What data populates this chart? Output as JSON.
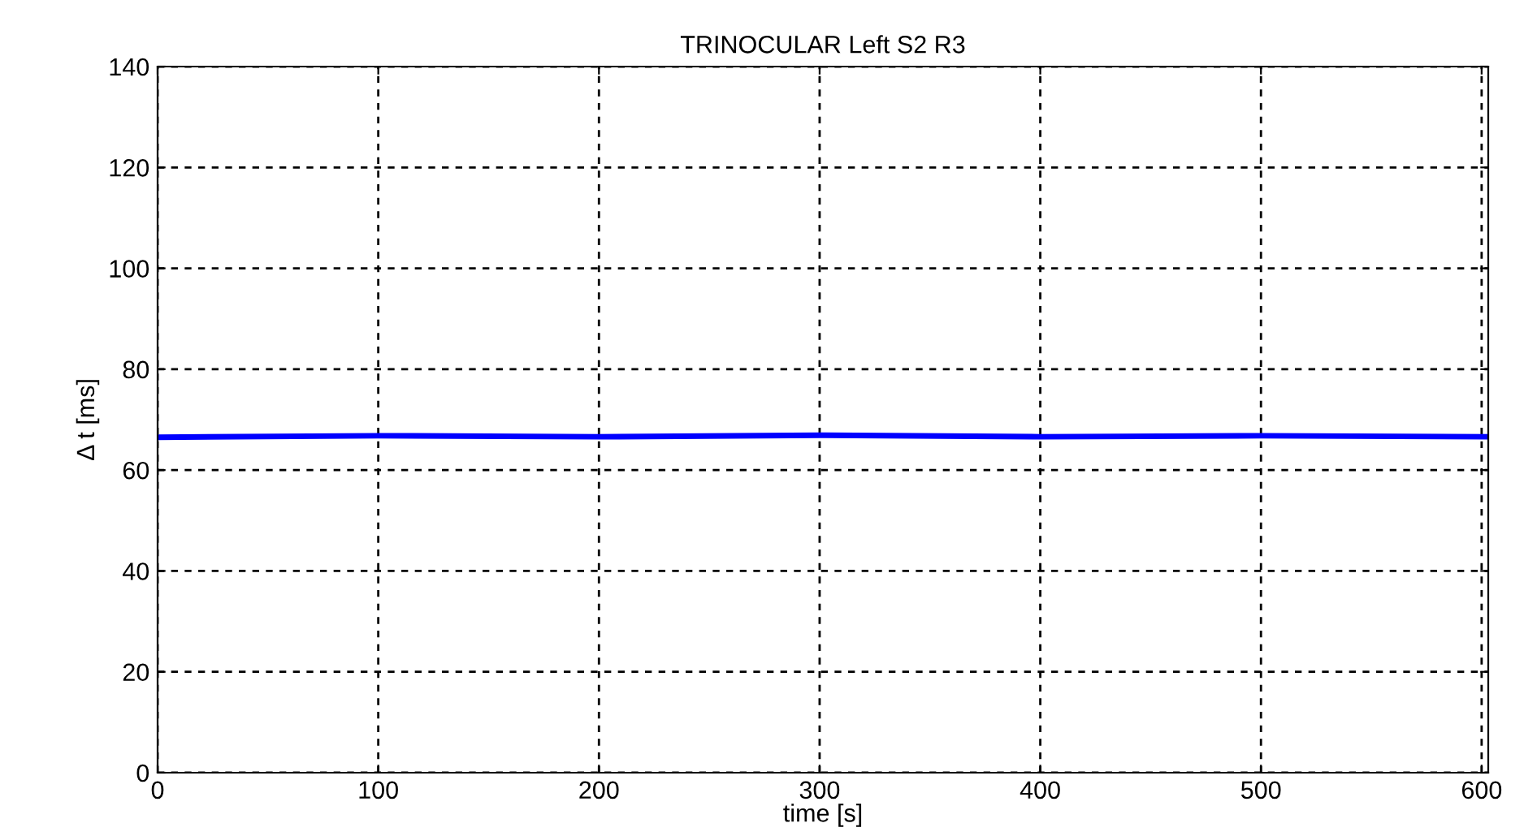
{
  "chart_data": {
    "type": "line",
    "title": "TRINOCULAR Left S2 R3",
    "xlabel": "time [s]",
    "ylabel": "Δ t [ms]",
    "x": [
      0,
      100,
      200,
      300,
      400,
      500,
      603
    ],
    "series": [
      {
        "color": "#0000ff",
        "values": [
          66.5,
          66.8,
          66.6,
          66.9,
          66.6,
          66.8,
          66.6
        ]
      }
    ],
    "xlim": [
      0,
      603
    ],
    "ylim": [
      0,
      140
    ],
    "xticks": [
      0,
      100,
      200,
      300,
      400,
      500,
      600
    ],
    "yticks": [
      0,
      20,
      40,
      60,
      80,
      100,
      120,
      140
    ],
    "grid": true,
    "line_style": "solid",
    "marker": "none"
  }
}
